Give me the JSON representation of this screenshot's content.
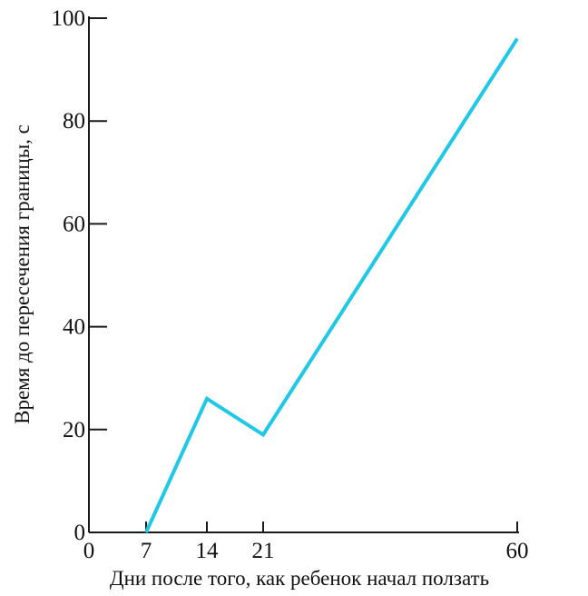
{
  "chart_data": {
    "type": "line",
    "title": "",
    "xlabel": "Дни после того, как ребенок начал ползать",
    "ylabel": "Время до пересечения границы, с",
    "xlim": [
      0,
      60
    ],
    "ylim": [
      0,
      100
    ],
    "x_ticks": [
      0,
      7,
      14,
      21,
      60
    ],
    "y_ticks": [
      0,
      20,
      40,
      60,
      80,
      100
    ],
    "x_scale": "piecewise-linear (gap between 21 and 60)",
    "grid": false,
    "legend": "none",
    "series": [
      {
        "color": "#1ec8e6",
        "x": [
          7,
          14,
          21,
          60
        ],
        "y": [
          0,
          26,
          19,
          96
        ]
      }
    ]
  }
}
